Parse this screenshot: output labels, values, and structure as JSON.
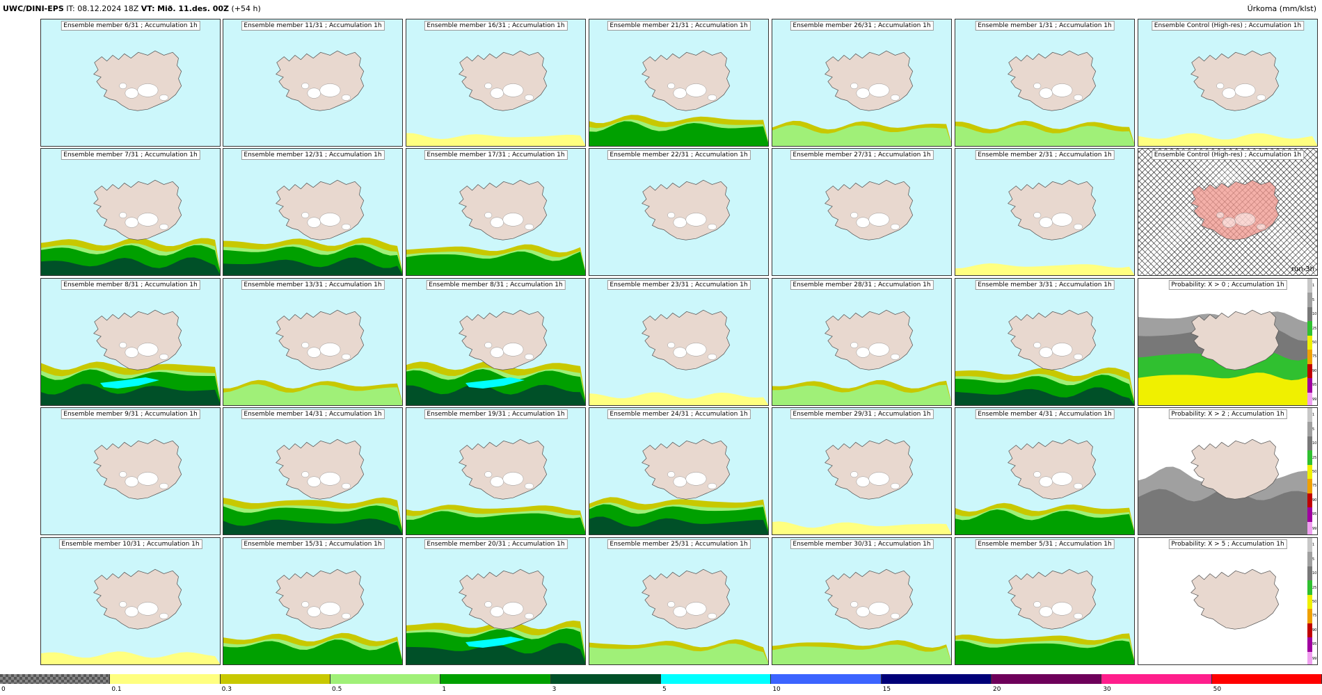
{
  "header": {
    "model": "UWC/DINI-EPS",
    "it_label": "IT:",
    "it_value": "08.12.2024 18Z",
    "vt_label": "VT:",
    "vt_value": "Mið. 11.des. 00Z",
    "lead": "(+54 h)",
    "right_title": "Úrkoma (mm/klst)"
  },
  "colors": {
    "sea": "#ccf7fb",
    "land": "#e8d8cf",
    "ice": "#ffffff",
    "c_0_1": "#ffff80",
    "c_0_3": "#c8c800",
    "c_0_5": "#a0f078",
    "c_1": "#00a000",
    "c_3": "#005028",
    "c_5": "#00ffff",
    "c_10": "#3c64ff",
    "c_15": "#000078",
    "c_20": "#6e005a",
    "c_30": "#ff1e8c",
    "c_50": "#ff0000"
  },
  "panels": [
    {
      "title": "Ensemble member 6/31 ; Accumulation 1h",
      "row": 0,
      "col": 0,
      "level": 0
    },
    {
      "title": "Ensemble member 11/31 ; Accumulation 1h",
      "row": 0,
      "col": 1,
      "level": 0
    },
    {
      "title": "Ensemble member 16/31 ; Accumulation 1h",
      "row": 0,
      "col": 2,
      "level": 1
    },
    {
      "title": "Ensemble member 21/31 ; Accumulation 1h",
      "row": 0,
      "col": 3,
      "level": 3
    },
    {
      "title": "Ensemble member 26/31 ; Accumulation 1h",
      "row": 0,
      "col": 4,
      "level": 2
    },
    {
      "title": "Ensemble member 1/31 ; Accumulation 1h",
      "row": 0,
      "col": 5,
      "level": 2
    },
    {
      "title": "Ensemble Control (High-res) ; Accumulation 1h",
      "row": 0,
      "col": 6,
      "level": 1
    },
    {
      "title": "Ensemble member 7/31 ; Accumulation 1h",
      "row": 1,
      "col": 0,
      "level": 4
    },
    {
      "title": "Ensemble member 12/31 ; Accumulation 1h",
      "row": 1,
      "col": 1,
      "level": 4
    },
    {
      "title": "Ensemble member 17/31 ; Accumulation 1h",
      "row": 1,
      "col": 2,
      "level": 3
    },
    {
      "title": "Ensemble member 22/31 ; Accumulation 1h",
      "row": 1,
      "col": 3,
      "level": 0
    },
    {
      "title": "Ensemble member 27/31 ; Accumulation 1h",
      "row": 1,
      "col": 4,
      "level": 0
    },
    {
      "title": "Ensemble member 2/31 ; Accumulation 1h",
      "row": 1,
      "col": 5,
      "level": 1
    },
    {
      "title": "Ensemble Control (High-res) ; Accumulation 1h",
      "row": 1,
      "col": 6,
      "level": -1,
      "run_label": "run-3h"
    },
    {
      "title": "Ensemble member 8/31 ; Accumulation 1h",
      "row": 2,
      "col": 0,
      "level": 5
    },
    {
      "title": "Ensemble member 13/31 ; Accumulation 1h",
      "row": 2,
      "col": 1,
      "level": 2
    },
    {
      "title": "Ensemble member 8/31 ; Accumulation 1h",
      "row": 2,
      "col": 2,
      "level": 5
    },
    {
      "title": "Ensemble member 23/31 ; Accumulation 1h",
      "row": 2,
      "col": 3,
      "level": 1
    },
    {
      "title": "Ensemble member 28/31 ; Accumulation 1h",
      "row": 2,
      "col": 4,
      "level": 2
    },
    {
      "title": "Ensemble member 3/31 ; Accumulation 1h",
      "row": 2,
      "col": 5,
      "level": 4
    },
    {
      "title": "Probability: X > 0 ; Accumulation 1h",
      "row": 2,
      "col": 6,
      "level": -2
    },
    {
      "title": "Ensemble member 9/31 ; Accumulation 1h",
      "row": 3,
      "col": 0,
      "level": 0
    },
    {
      "title": "Ensemble member 14/31 ; Accumulation 1h",
      "row": 3,
      "col": 1,
      "level": 4
    },
    {
      "title": "Ensemble member 19/31 ; Accumulation 1h",
      "row": 3,
      "col": 2,
      "level": 3
    },
    {
      "title": "Ensemble member 24/31 ; Accumulation 1h",
      "row": 3,
      "col": 3,
      "level": 4
    },
    {
      "title": "Ensemble member 29/31 ; Accumulation 1h",
      "row": 3,
      "col": 4,
      "level": 1
    },
    {
      "title": "Ensemble member 4/31 ; Accumulation 1h",
      "row": 3,
      "col": 5,
      "level": 3
    },
    {
      "title": "Probability: X > 2 ; Accumulation 1h",
      "row": 3,
      "col": 6,
      "level": -3
    },
    {
      "title": "Ensemble member 10/31 ; Accumulation 1h",
      "row": 4,
      "col": 0,
      "level": 1
    },
    {
      "title": "Ensemble member 15/31 ; Accumulation 1h",
      "row": 4,
      "col": 1,
      "level": 3
    },
    {
      "title": "Ensemble member 20/31 ; Accumulation 1h",
      "row": 4,
      "col": 2,
      "level": 5
    },
    {
      "title": "Ensemble member 25/31 ; Accumulation 1h",
      "row": 4,
      "col": 3,
      "level": 2
    },
    {
      "title": "Ensemble member 30/31 ; Accumulation 1h",
      "row": 4,
      "col": 4,
      "level": 2
    },
    {
      "title": "Ensemble member 5/31 ; Accumulation 1h",
      "row": 4,
      "col": 5,
      "level": 3
    },
    {
      "title": "Probability: X > 5 ; Accumulation 1h",
      "row": 4,
      "col": 6,
      "level": -4
    }
  ],
  "prob_scale": {
    "ticks": [
      "1",
      "5",
      "10",
      "25",
      "50",
      "75",
      "90",
      "95",
      "99"
    ],
    "colors": [
      "#c8c8c8",
      "#a0a0a0",
      "#787878",
      "#30c030",
      "#f0f000",
      "#f0a000",
      "#c00000",
      "#a000a0",
      "#f0a0f0"
    ]
  },
  "colorbar": {
    "labels": [
      "0",
      "0.1",
      "0.3",
      "0.5",
      "1",
      "3",
      "5",
      "10",
      "15",
      "20",
      "30",
      "50"
    ],
    "colors": [
      "checker",
      "#ffff80",
      "#c8c800",
      "#a0f078",
      "#00a000",
      "#005028",
      "#00ffff",
      "#3c64ff",
      "#000078",
      "#6e005a",
      "#ff1e8c",
      "#ff0000"
    ]
  }
}
